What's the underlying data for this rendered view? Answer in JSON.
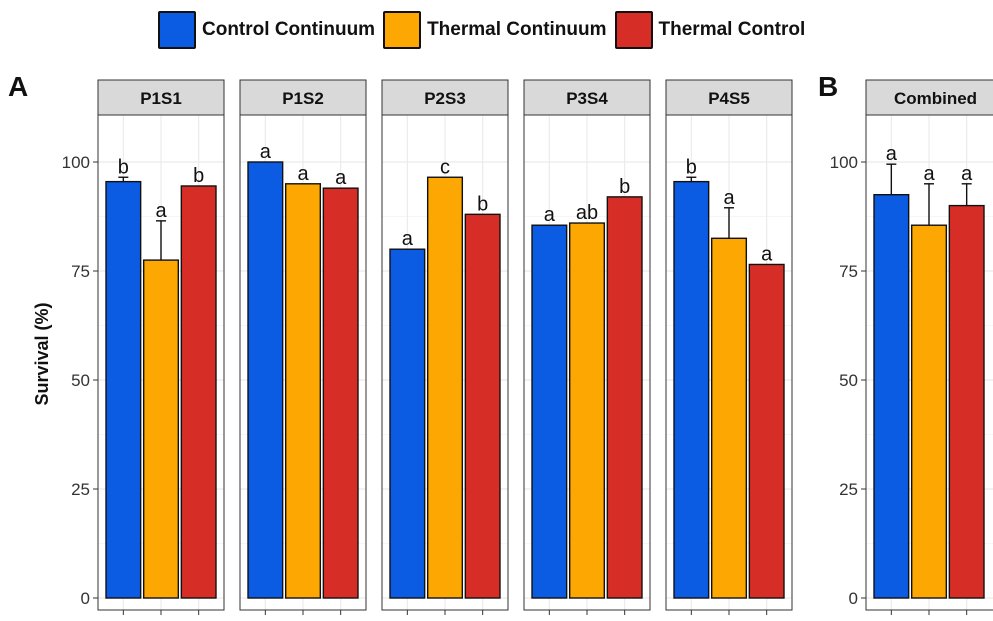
{
  "legend": {
    "items": [
      {
        "label": "Control Continuum",
        "color": "#0b5be3"
      },
      {
        "label": "Thermal Continuum",
        "color": "#fda702"
      },
      {
        "label": "Thermal Control",
        "color": "#d62e26"
      }
    ]
  },
  "panel_labels": {
    "a": "A",
    "b": "B"
  },
  "chart_data": [
    {
      "type": "bar",
      "panel": "A",
      "ylabel": "Survival (%)",
      "ylim": [
        0,
        100
      ],
      "yticks": [
        0,
        25,
        50,
        75,
        100
      ],
      "grid": true,
      "legend_position": "top",
      "series_names": [
        "Control Continuum",
        "Thermal Continuum",
        "Thermal Control"
      ],
      "facets": [
        {
          "label": "P1S1",
          "values": [
            95.5,
            77.5,
            94.5
          ],
          "error": [
            1,
            9,
            0
          ],
          "letters": [
            "b",
            "a",
            "b"
          ]
        },
        {
          "label": "P1S2",
          "values": [
            100,
            95,
            94
          ],
          "error": [
            0,
            0,
            0
          ],
          "letters": [
            "a",
            "a",
            "a"
          ]
        },
        {
          "label": "P2S3",
          "values": [
            80,
            96.5,
            88
          ],
          "error": [
            0,
            0,
            0
          ],
          "letters": [
            "a",
            "c",
            "b"
          ]
        },
        {
          "label": "P3S4",
          "values": [
            85.5,
            86,
            92
          ],
          "error": [
            0,
            0,
            0
          ],
          "letters": [
            "a",
            "ab",
            "b"
          ]
        },
        {
          "label": "P4S5",
          "values": [
            95.5,
            82.5,
            76.5
          ],
          "error": [
            1,
            7,
            0
          ],
          "letters": [
            "b",
            "a",
            "a"
          ]
        }
      ]
    },
    {
      "type": "bar",
      "panel": "B",
      "ylim": [
        0,
        100
      ],
      "yticks": [
        0,
        25,
        50,
        75,
        100
      ],
      "grid": true,
      "series_names": [
        "Control Continuum",
        "Thermal Continuum",
        "Thermal Control"
      ],
      "facets": [
        {
          "label": "Combined",
          "values": [
            92.5,
            85.5,
            90
          ],
          "error": [
            7,
            9.5,
            5
          ],
          "letters": [
            "a",
            "a",
            "a"
          ]
        }
      ]
    }
  ]
}
